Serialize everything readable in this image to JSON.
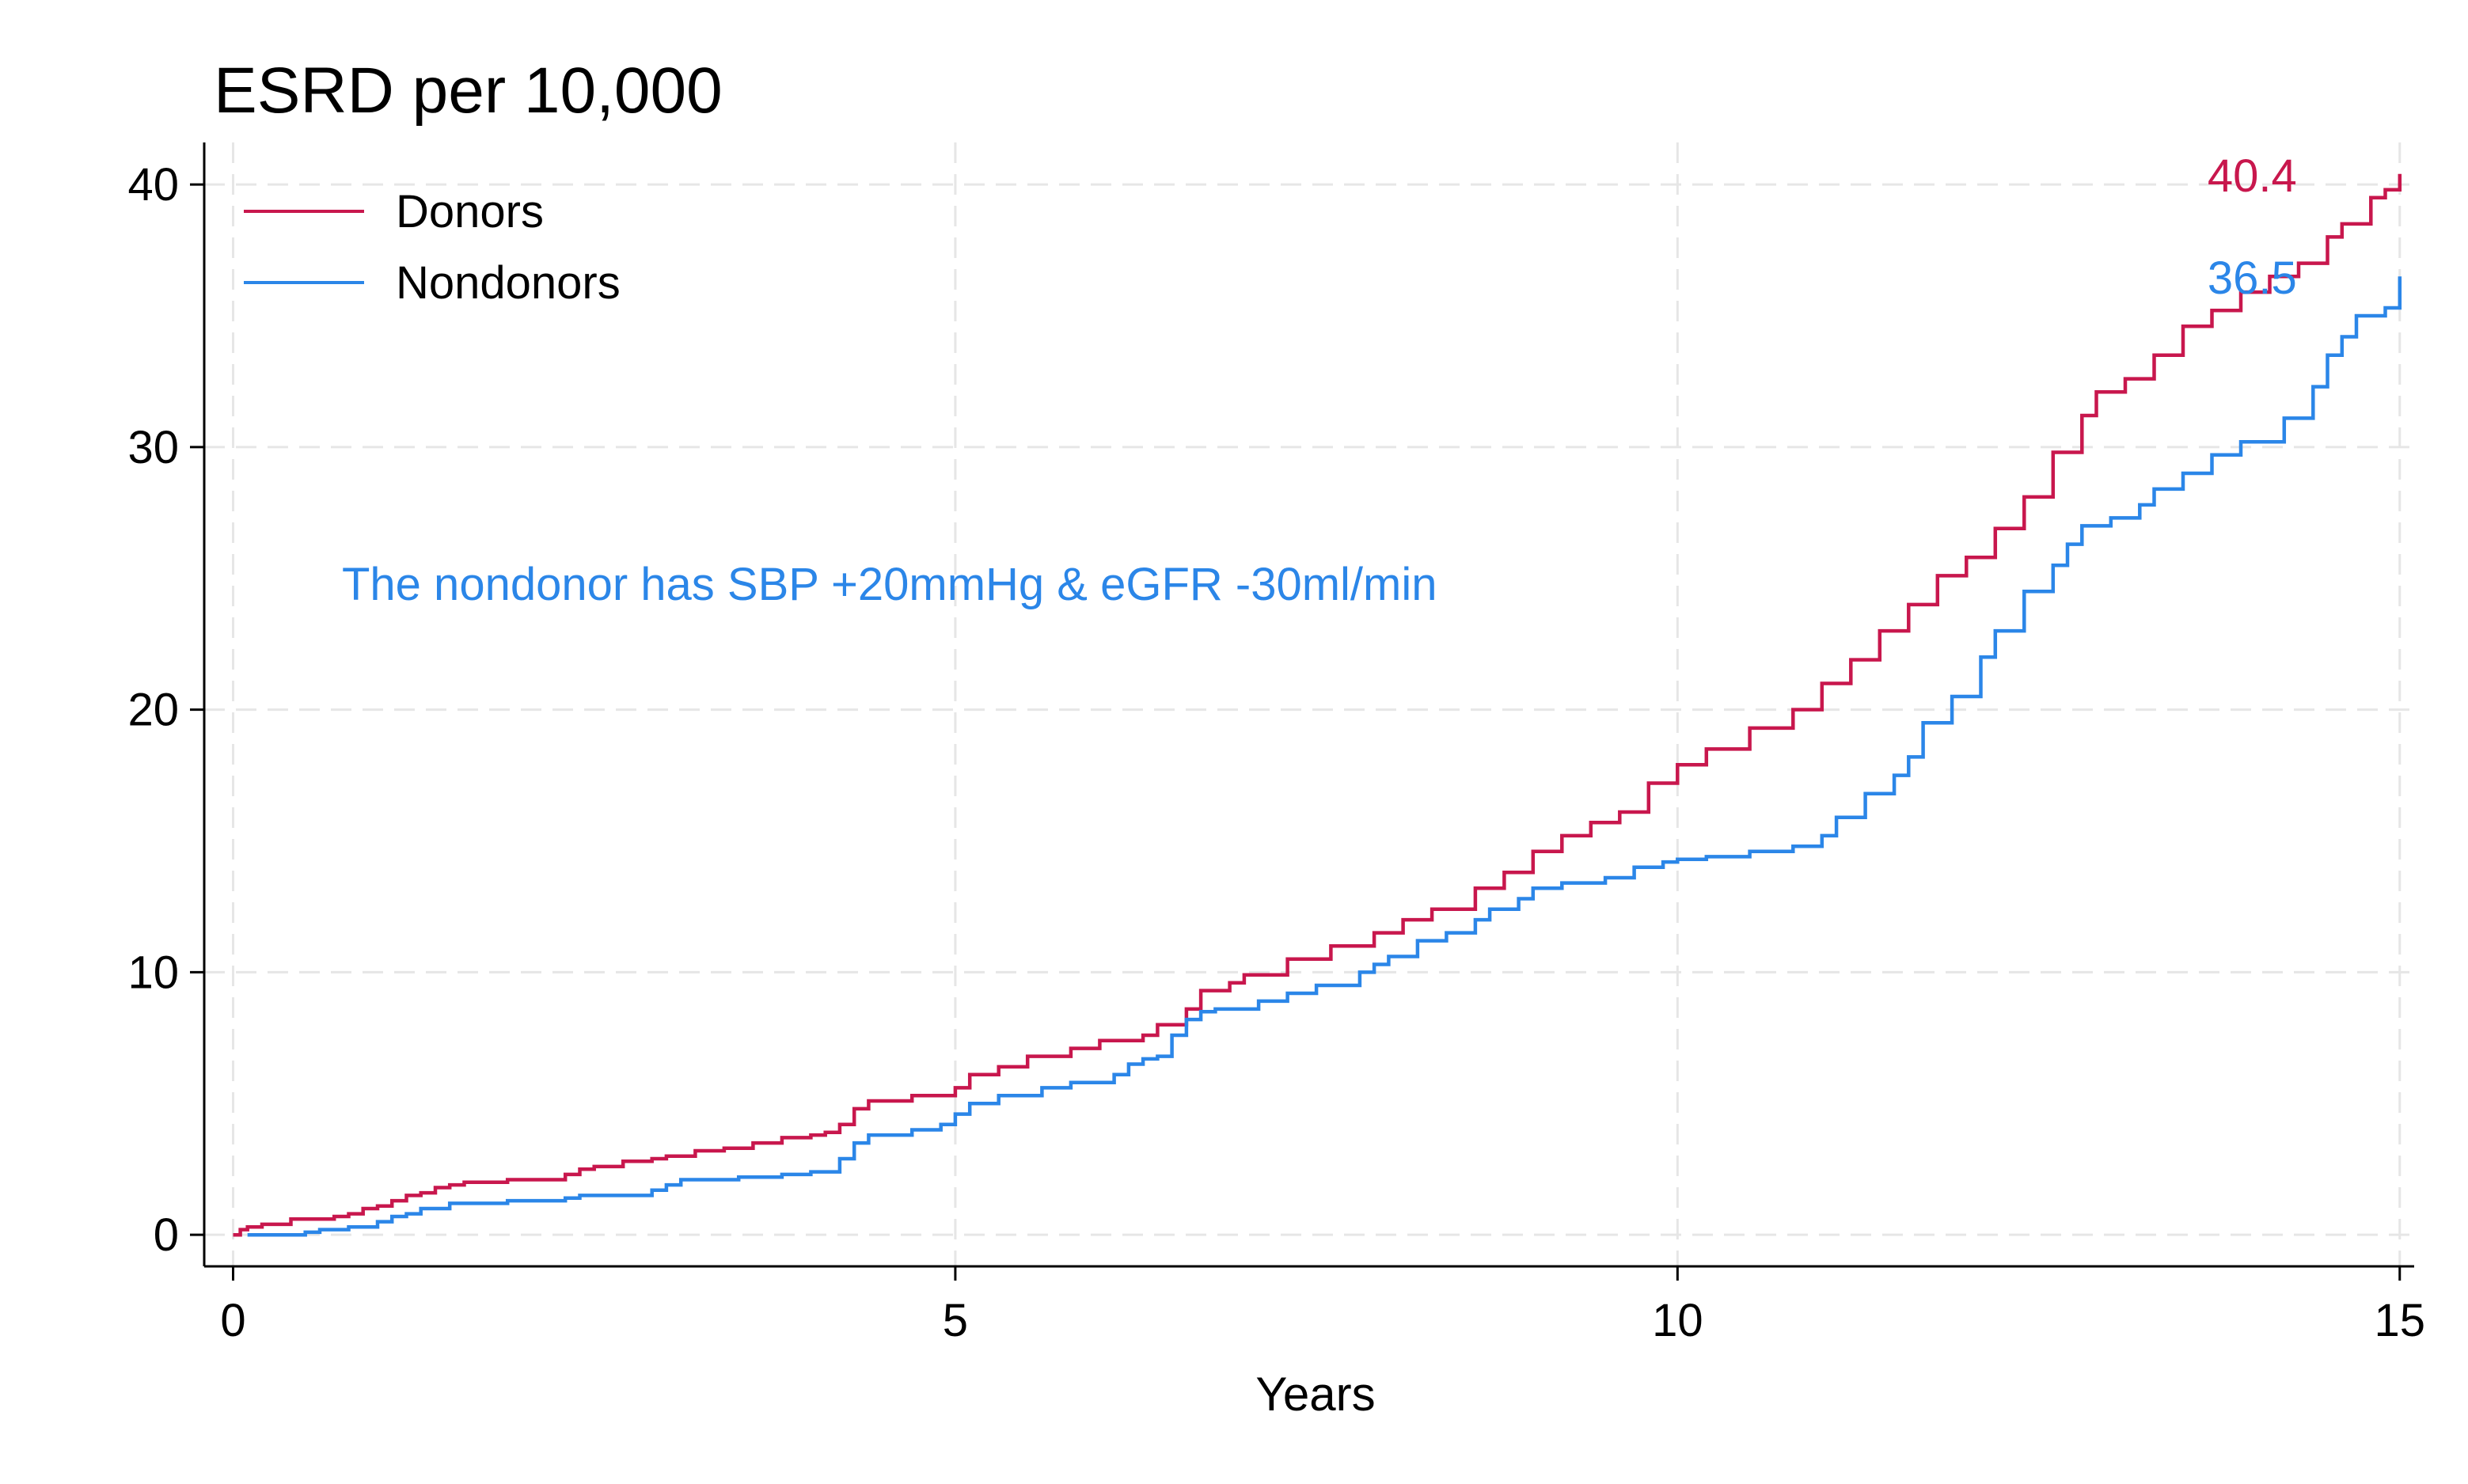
{
  "chart_data": {
    "type": "line",
    "title": "ESRD per 10,000",
    "xlabel": "Years",
    "ylabel": "",
    "xlim": [
      -0.2,
      15.1
    ],
    "ylim": [
      -1.2,
      41.6
    ],
    "xticks": [
      0,
      5,
      10,
      15
    ],
    "yticks": [
      0,
      10,
      20,
      30,
      40
    ],
    "grid": true,
    "legend_position": "top-left",
    "annotation": "The nondonor has SBP +20mmHg & eGFR -30ml/min",
    "series": [
      {
        "name": "Donors",
        "color": "#c8174d",
        "end_label": "40.4",
        "step": true,
        "points": [
          [
            0,
            0
          ],
          [
            0.05,
            0.2
          ],
          [
            0.1,
            0.3
          ],
          [
            0.2,
            0.4
          ],
          [
            0.3,
            0.4
          ],
          [
            0.4,
            0.6
          ],
          [
            0.6,
            0.6
          ],
          [
            0.7,
            0.7
          ],
          [
            0.8,
            0.8
          ],
          [
            0.9,
            1.0
          ],
          [
            1.0,
            1.1
          ],
          [
            1.1,
            1.3
          ],
          [
            1.2,
            1.5
          ],
          [
            1.3,
            1.6
          ],
          [
            1.4,
            1.8
          ],
          [
            1.5,
            1.9
          ],
          [
            1.6,
            2.0
          ],
          [
            1.8,
            2.0
          ],
          [
            1.9,
            2.1
          ],
          [
            2.2,
            2.1
          ],
          [
            2.3,
            2.3
          ],
          [
            2.4,
            2.5
          ],
          [
            2.5,
            2.6
          ],
          [
            2.7,
            2.8
          ],
          [
            2.9,
            2.9
          ],
          [
            3.0,
            3.0
          ],
          [
            3.2,
            3.2
          ],
          [
            3.4,
            3.3
          ],
          [
            3.6,
            3.5
          ],
          [
            3.8,
            3.7
          ],
          [
            4.0,
            3.8
          ],
          [
            4.1,
            3.9
          ],
          [
            4.2,
            4.2
          ],
          [
            4.3,
            4.8
          ],
          [
            4.4,
            5.1
          ],
          [
            4.6,
            5.1
          ],
          [
            4.7,
            5.3
          ],
          [
            5.0,
            5.6
          ],
          [
            5.1,
            6.1
          ],
          [
            5.3,
            6.4
          ],
          [
            5.5,
            6.8
          ],
          [
            5.8,
            7.1
          ],
          [
            6.0,
            7.4
          ],
          [
            6.3,
            7.6
          ],
          [
            6.4,
            8.0
          ],
          [
            6.6,
            8.6
          ],
          [
            6.7,
            9.3
          ],
          [
            6.9,
            9.6
          ],
          [
            7.0,
            9.9
          ],
          [
            7.3,
            10.5
          ],
          [
            7.6,
            11.0
          ],
          [
            7.9,
            11.5
          ],
          [
            8.1,
            12.0
          ],
          [
            8.3,
            12.4
          ],
          [
            8.6,
            13.2
          ],
          [
            8.8,
            13.8
          ],
          [
            9.0,
            14.6
          ],
          [
            9.2,
            15.2
          ],
          [
            9.4,
            15.7
          ],
          [
            9.6,
            16.1
          ],
          [
            9.8,
            17.2
          ],
          [
            10.0,
            17.9
          ],
          [
            10.2,
            18.5
          ],
          [
            10.5,
            19.3
          ],
          [
            10.8,
            20.0
          ],
          [
            11.0,
            21.0
          ],
          [
            11.2,
            21.9
          ],
          [
            11.4,
            23.0
          ],
          [
            11.6,
            24.0
          ],
          [
            11.8,
            25.1
          ],
          [
            12.0,
            25.8
          ],
          [
            12.2,
            26.9
          ],
          [
            12.4,
            28.1
          ],
          [
            12.6,
            29.8
          ],
          [
            12.8,
            31.2
          ],
          [
            12.9,
            32.1
          ],
          [
            13.1,
            32.6
          ],
          [
            13.3,
            33.5
          ],
          [
            13.5,
            34.6
          ],
          [
            13.7,
            35.2
          ],
          [
            13.9,
            35.9
          ],
          [
            14.1,
            36.5
          ],
          [
            14.3,
            37.0
          ],
          [
            14.5,
            38.0
          ],
          [
            14.6,
            38.5
          ],
          [
            14.8,
            39.5
          ],
          [
            14.9,
            39.8
          ],
          [
            15.0,
            40.4
          ]
        ]
      },
      {
        "name": "Nondonors",
        "color": "#2b86e8",
        "end_label": "36.5",
        "step": true,
        "points": [
          [
            0.1,
            0
          ],
          [
            0.4,
            0
          ],
          [
            0.5,
            0.1
          ],
          [
            0.6,
            0.2
          ],
          [
            0.8,
            0.3
          ],
          [
            1.0,
            0.5
          ],
          [
            1.1,
            0.7
          ],
          [
            1.2,
            0.8
          ],
          [
            1.3,
            1.0
          ],
          [
            1.5,
            1.2
          ],
          [
            1.7,
            1.2
          ],
          [
            1.9,
            1.3
          ],
          [
            2.3,
            1.4
          ],
          [
            2.4,
            1.5
          ],
          [
            2.9,
            1.7
          ],
          [
            3.0,
            1.9
          ],
          [
            3.1,
            2.1
          ],
          [
            3.5,
            2.2
          ],
          [
            3.8,
            2.3
          ],
          [
            4.0,
            2.4
          ],
          [
            4.2,
            2.9
          ],
          [
            4.3,
            3.5
          ],
          [
            4.4,
            3.8
          ],
          [
            4.7,
            4.0
          ],
          [
            4.9,
            4.2
          ],
          [
            5.0,
            4.6
          ],
          [
            5.1,
            5.0
          ],
          [
            5.3,
            5.3
          ],
          [
            5.6,
            5.6
          ],
          [
            5.8,
            5.8
          ],
          [
            6.1,
            6.1
          ],
          [
            6.2,
            6.5
          ],
          [
            6.3,
            6.7
          ],
          [
            6.4,
            6.8
          ],
          [
            6.5,
            7.6
          ],
          [
            6.6,
            8.2
          ],
          [
            6.7,
            8.5
          ],
          [
            6.8,
            8.6
          ],
          [
            7.1,
            8.9
          ],
          [
            7.3,
            9.2
          ],
          [
            7.5,
            9.5
          ],
          [
            7.8,
            10.0
          ],
          [
            7.9,
            10.3
          ],
          [
            8.0,
            10.6
          ],
          [
            8.2,
            11.2
          ],
          [
            8.4,
            11.5
          ],
          [
            8.6,
            12.0
          ],
          [
            8.7,
            12.4
          ],
          [
            8.9,
            12.8
          ],
          [
            9.0,
            13.2
          ],
          [
            9.2,
            13.4
          ],
          [
            9.5,
            13.6
          ],
          [
            9.7,
            14.0
          ],
          [
            9.9,
            14.2
          ],
          [
            10.0,
            14.3
          ],
          [
            10.2,
            14.4
          ],
          [
            10.5,
            14.6
          ],
          [
            10.8,
            14.8
          ],
          [
            11.0,
            15.2
          ],
          [
            11.1,
            15.9
          ],
          [
            11.3,
            16.8
          ],
          [
            11.5,
            17.5
          ],
          [
            11.6,
            18.2
          ],
          [
            11.7,
            19.5
          ],
          [
            11.9,
            20.5
          ],
          [
            12.1,
            22.0
          ],
          [
            12.2,
            23.0
          ],
          [
            12.4,
            24.5
          ],
          [
            12.6,
            25.5
          ],
          [
            12.7,
            26.3
          ],
          [
            12.8,
            27.0
          ],
          [
            13.0,
            27.3
          ],
          [
            13.2,
            27.8
          ],
          [
            13.3,
            28.4
          ],
          [
            13.5,
            29.0
          ],
          [
            13.7,
            29.7
          ],
          [
            13.9,
            30.2
          ],
          [
            14.2,
            31.1
          ],
          [
            14.4,
            32.3
          ],
          [
            14.5,
            33.5
          ],
          [
            14.6,
            34.2
          ],
          [
            14.7,
            35.0
          ],
          [
            14.9,
            35.3
          ],
          [
            15.0,
            36.5
          ]
        ]
      }
    ]
  }
}
